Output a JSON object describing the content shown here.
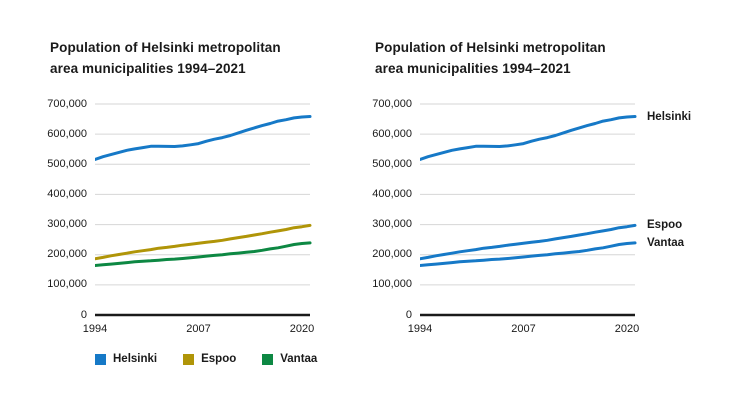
{
  "styles": {
    "background": "#FFFFFF",
    "text_color": "#1A1A1A",
    "grid_color": "#D6D6D6",
    "axis_color": "#1A1A1A",
    "accent_blue": "#1679C7",
    "espoo_olive": "#B09508",
    "vantaa_green": "#0D8843"
  },
  "chart_data": [
    {
      "type": "line",
      "title": "Population of Helsinki metropolitan area municipalities 1994–2021",
      "x": [
        1994,
        1995,
        1996,
        1997,
        1998,
        1999,
        2000,
        2001,
        2002,
        2003,
        2004,
        2005,
        2006,
        2007,
        2008,
        2009,
        2010,
        2011,
        2012,
        2013,
        2014,
        2015,
        2016,
        2017,
        2018,
        2019,
        2020,
        2021
      ],
      "series": [
        {
          "name": "Helsinki",
          "color": "#1679C7",
          "values": [
            515765,
            525031,
            532053,
            539363,
            546317,
            551123,
            555474,
            559718,
            559716,
            559330,
            559046,
            560905,
            564521,
            568531,
            576632,
            583350,
            588549,
            595384,
            603968,
            612664,
            620715,
            628208,
            635181,
            643272,
            648042,
            653835,
            656920,
            658457
          ]
        },
        {
          "name": "Espoo",
          "color": "#B09508",
          "values": [
            186507,
            191247,
            196260,
            200834,
            204962,
            209667,
            213271,
            216836,
            221597,
            224231,
            227472,
            231704,
            235019,
            238047,
            241565,
            244330,
            247970,
            252439,
            256824,
            260753,
            265543,
            269802,
            274583,
            279044,
            283632,
            289731,
            292796,
            297132
          ]
        },
        {
          "name": "Vantaa",
          "color": "#0D8843",
          "values": [
            164376,
            166480,
            168978,
            171297,
            173860,
            176386,
            178471,
            179856,
            181890,
            184039,
            185429,
            187281,
            189711,
            192522,
            195397,
            197636,
            200055,
            203001,
            205312,
            208098,
            210803,
            214605,
            219341,
            223027,
            228166,
            233775,
            237231,
            239206
          ]
        }
      ],
      "ylim": [
        0,
        700000
      ],
      "yticks": [
        {
          "v": 700000,
          "label": "700,000"
        },
        {
          "v": 600000,
          "label": "600,000"
        },
        {
          "v": 500000,
          "label": "500,000"
        },
        {
          "v": 400000,
          "label": "400,000"
        },
        {
          "v": 300000,
          "label": "300,000"
        },
        {
          "v": 200000,
          "label": "200,000"
        },
        {
          "v": 100000,
          "label": "100,000"
        },
        {
          "v": 0,
          "label": "0"
        }
      ],
      "xticks": [
        {
          "v": 1994,
          "label": "1994"
        },
        {
          "v": 2007,
          "label": "2007"
        },
        {
          "v": 2020,
          "label": "2020"
        }
      ],
      "grid": true,
      "legend_position": "bottom",
      "direct_labels": false
    },
    {
      "type": "line",
      "title": "Population of Helsinki metropolitan area municipalities 1994–2021",
      "x": [
        1994,
        1995,
        1996,
        1997,
        1998,
        1999,
        2000,
        2001,
        2002,
        2003,
        2004,
        2005,
        2006,
        2007,
        2008,
        2009,
        2010,
        2011,
        2012,
        2013,
        2014,
        2015,
        2016,
        2017,
        2018,
        2019,
        2020,
        2021
      ],
      "series": [
        {
          "name": "Helsinki",
          "color": "#1679C7",
          "values": [
            515765,
            525031,
            532053,
            539363,
            546317,
            551123,
            555474,
            559718,
            559716,
            559330,
            559046,
            560905,
            564521,
            568531,
            576632,
            583350,
            588549,
            595384,
            603968,
            612664,
            620715,
            628208,
            635181,
            643272,
            648042,
            653835,
            656920,
            658457
          ]
        },
        {
          "name": "Espoo",
          "color": "#1679C7",
          "values": [
            186507,
            191247,
            196260,
            200834,
            204962,
            209667,
            213271,
            216836,
            221597,
            224231,
            227472,
            231704,
            235019,
            238047,
            241565,
            244330,
            247970,
            252439,
            256824,
            260753,
            265543,
            269802,
            274583,
            279044,
            283632,
            289731,
            292796,
            297132
          ]
        },
        {
          "name": "Vantaa",
          "color": "#1679C7",
          "values": [
            164376,
            166480,
            168978,
            171297,
            173860,
            176386,
            178471,
            179856,
            181890,
            184039,
            185429,
            187281,
            189711,
            192522,
            195397,
            197636,
            200055,
            203001,
            205312,
            208098,
            210803,
            214605,
            219341,
            223027,
            228166,
            233775,
            237231,
            239206
          ]
        }
      ],
      "ylim": [
        0,
        700000
      ],
      "yticks": [
        {
          "v": 700000,
          "label": "700,000"
        },
        {
          "v": 600000,
          "label": "600,000"
        },
        {
          "v": 500000,
          "label": "500,000"
        },
        {
          "v": 400000,
          "label": "400,000"
        },
        {
          "v": 300000,
          "label": "300,000"
        },
        {
          "v": 200000,
          "label": "200,000"
        },
        {
          "v": 100000,
          "label": "100,000"
        },
        {
          "v": 0,
          "label": "0"
        }
      ],
      "xticks": [
        {
          "v": 1994,
          "label": "1994"
        },
        {
          "v": 2007,
          "label": "2007"
        },
        {
          "v": 2020,
          "label": "2020"
        }
      ],
      "grid": true,
      "legend_position": "none",
      "direct_labels": true
    }
  ]
}
